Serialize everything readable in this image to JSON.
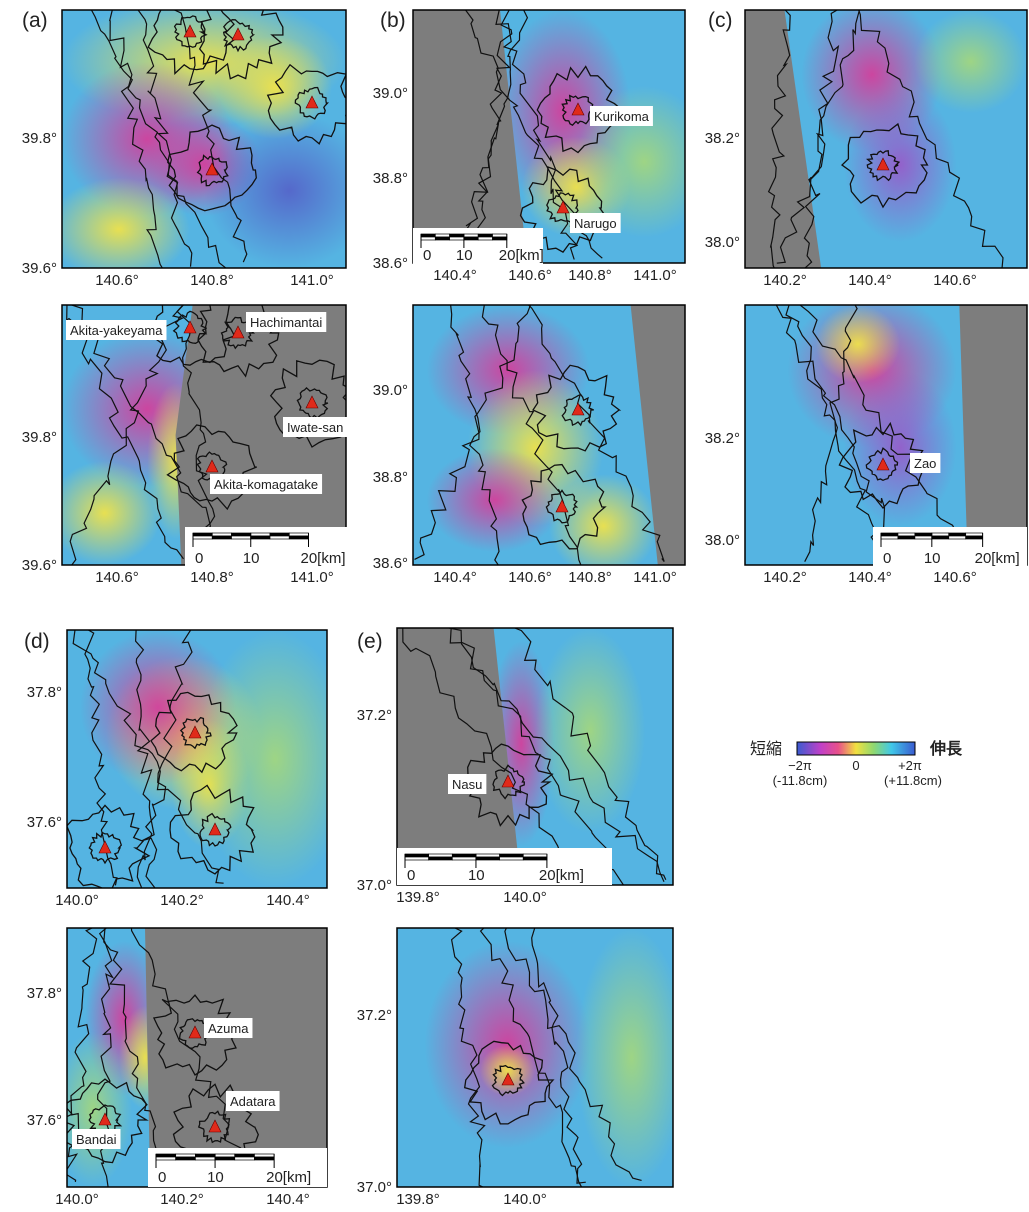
{
  "panels": [
    {
      "label": "(a)",
      "maps": [
        {
          "y_labels": [
            "39.8°",
            "39.6°"
          ],
          "x_labels": [
            "140.6°",
            "140.8°",
            "141.0°"
          ],
          "volcano_labels": [],
          "scale_bar": []
        },
        {
          "y_labels": [
            "39.8°",
            "39.6°"
          ],
          "x_labels": [
            "140.6°",
            "140.8°",
            "141.0°"
          ],
          "volcano_labels": [
            "Akita-yakeyama",
            "Hachimantai",
            "Iwate-san",
            "Akita-komagatake"
          ],
          "scale_bar": [
            "0",
            "10",
            "20[km]"
          ]
        }
      ]
    },
    {
      "label": "(b)",
      "maps": [
        {
          "y_labels": [
            "39.0°",
            "38.8°",
            "38.6°"
          ],
          "x_labels": [
            "140.4°",
            "140.6°",
            "140.8°",
            "141.0°"
          ],
          "volcano_labels": [
            "Kurikoma",
            "Narugo"
          ],
          "scale_bar": [
            "0",
            "10",
            "20[km]"
          ]
        },
        {
          "y_labels": [
            "39.0°",
            "38.8°",
            "38.6°"
          ],
          "x_labels": [
            "140.4°",
            "140.6°",
            "140.8°",
            "141.0°"
          ],
          "volcano_labels": [],
          "scale_bar": []
        }
      ]
    },
    {
      "label": "(c)",
      "maps": [
        {
          "y_labels": [
            "38.2°",
            "38.0°"
          ],
          "x_labels": [
            "140.2°",
            "140.4°",
            "140.6°"
          ],
          "volcano_labels": [],
          "scale_bar": []
        },
        {
          "y_labels": [
            "38.2°",
            "38.0°"
          ],
          "x_labels": [
            "140.2°",
            "140.4°",
            "140.6°"
          ],
          "volcano_labels": [
            "Zao"
          ],
          "scale_bar": [
            "0",
            "10",
            "20[km]"
          ]
        }
      ]
    },
    {
      "label": "(d)",
      "maps": [
        {
          "y_labels": [
            "37.8°",
            "37.6°"
          ],
          "x_labels": [
            "140.0°",
            "140.2°",
            "140.4°"
          ],
          "volcano_labels": [],
          "scale_bar": []
        },
        {
          "y_labels": [
            "37.8°",
            "37.6°"
          ],
          "x_labels": [
            "140.0°",
            "140.2°",
            "140.4°"
          ],
          "volcano_labels": [
            "Azuma",
            "Adatara",
            "Bandai"
          ],
          "scale_bar": [
            "0",
            "10",
            "20[km]"
          ]
        }
      ]
    },
    {
      "label": "(e)",
      "maps": [
        {
          "y_labels": [
            "37.2°",
            "37.0°"
          ],
          "x_labels": [
            "139.8°",
            "140.0°"
          ],
          "volcano_labels": [
            "Nasu"
          ],
          "scale_bar": [
            "0",
            "10",
            "20[km]"
          ]
        },
        {
          "y_labels": [
            "37.2°",
            "37.0°"
          ],
          "x_labels": [
            "139.8°",
            "140.0°"
          ],
          "volcano_labels": [],
          "scale_bar": []
        }
      ]
    }
  ],
  "legend": {
    "left_label": "短縮",
    "right_label": "伸長",
    "min_label": "−2π",
    "mid_label": "0",
    "max_label": "+2π",
    "min_value_label": "(-11.8cm)",
    "max_value_label": "(+11.8cm)"
  }
}
